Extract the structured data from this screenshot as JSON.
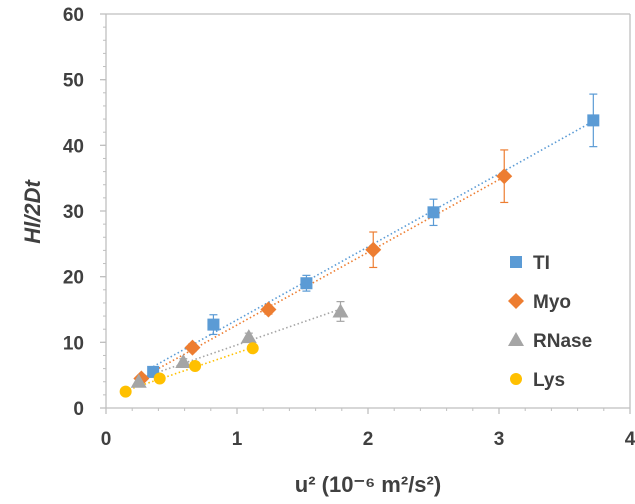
{
  "chart_data": {
    "type": "scatter",
    "xlabel": "u² (10⁻⁶ m²/s²)",
    "ylabel": "Hl/2Dt",
    "xlim": [
      0,
      4
    ],
    "ylim": [
      0,
      60
    ],
    "x_ticks": [
      0,
      1,
      2,
      3,
      4
    ],
    "y_ticks": [
      0,
      10,
      20,
      30,
      40,
      50,
      60
    ],
    "grid": false,
    "legend_position": "right",
    "trendlines": "linear, dotted",
    "series": [
      {
        "name": "TI",
        "marker": "square",
        "color": "#5B9BD5",
        "points": [
          {
            "x": 0.36,
            "y": 5.5,
            "err": 0.8
          },
          {
            "x": 0.82,
            "y": 12.7,
            "err": 1.5
          },
          {
            "x": 1.53,
            "y": 19.0,
            "err": 1.2
          },
          {
            "x": 2.5,
            "y": 29.8,
            "err": 2.0
          },
          {
            "x": 3.72,
            "y": 43.8,
            "err": 4.0
          }
        ]
      },
      {
        "name": "Myo",
        "marker": "diamond",
        "color": "#ED7D31",
        "points": [
          {
            "x": 0.27,
            "y": 4.5,
            "err": 0.5
          },
          {
            "x": 0.66,
            "y": 9.2,
            "err": 0.6
          },
          {
            "x": 1.24,
            "y": 15.0,
            "err": 0.7
          },
          {
            "x": 2.04,
            "y": 24.1,
            "err": 2.7
          },
          {
            "x": 3.04,
            "y": 35.3,
            "err": 4.0
          }
        ]
      },
      {
        "name": "RNase",
        "marker": "triangle",
        "color": "#A5A5A5",
        "points": [
          {
            "x": 0.25,
            "y": 4.0,
            "err": 0.4
          },
          {
            "x": 0.59,
            "y": 7.0,
            "err": 0.5
          },
          {
            "x": 1.09,
            "y": 10.8,
            "err": 0.6
          },
          {
            "x": 1.79,
            "y": 14.7,
            "err": 1.5
          }
        ]
      },
      {
        "name": "Lys",
        "marker": "circle",
        "color": "#FFC000",
        "points": [
          {
            "x": 0.15,
            "y": 2.5,
            "err": 0.3
          },
          {
            "x": 0.41,
            "y": 4.5,
            "err": 0.3
          },
          {
            "x": 0.68,
            "y": 6.4,
            "err": 0.4
          },
          {
            "x": 1.12,
            "y": 9.1,
            "err": 0.5
          }
        ]
      }
    ]
  }
}
